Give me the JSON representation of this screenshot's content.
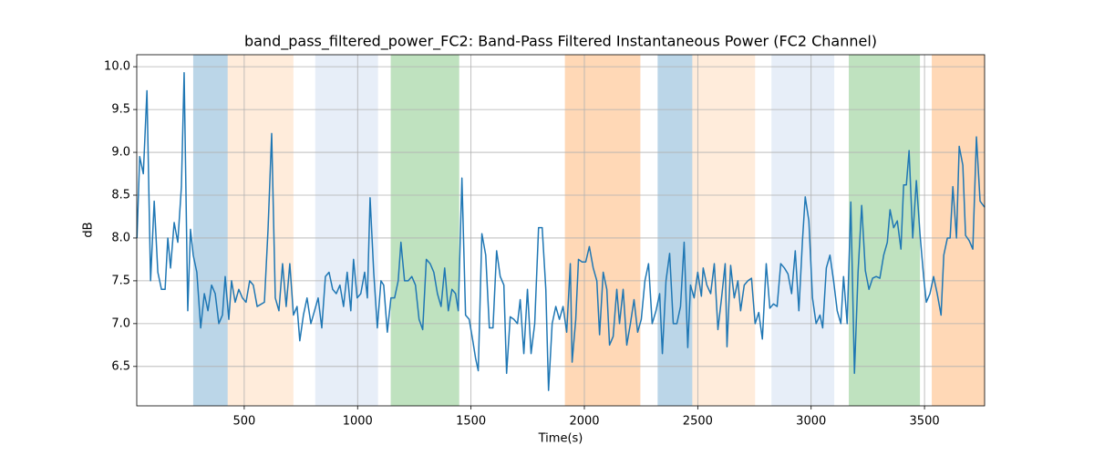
{
  "chart_data": {
    "type": "line",
    "title": "band_pass_filtered_power_FC2: Band-Pass Filtered Instantaneous Power (FC2 Channel)",
    "xlabel": "Time(s)",
    "ylabel": "dB",
    "xlim": [
      26,
      3765
    ],
    "ylim": [
      6.04,
      10.14
    ],
    "xticks": [
      500,
      1000,
      1500,
      2000,
      2500,
      3000,
      3500
    ],
    "yticks": [
      6.5,
      {
        "value": 7,
        "label": "7.0"
      },
      7.5,
      {
        "value": 8,
        "label": "8.0"
      },
      8.5,
      {
        "value": 9,
        "label": "9.0"
      },
      9.5,
      {
        "value": 10,
        "label": "10.0"
      }
    ],
    "grid": true,
    "spans": [
      {
        "start": 275,
        "end": 427,
        "color": "#1f77b4",
        "alpha": 0.3
      },
      {
        "start": 427,
        "end": 717,
        "color": "#ff7f0e",
        "alpha": 0.15
      },
      {
        "start": 813,
        "end": 1090,
        "color": "#aec7e8",
        "alpha": 0.3
      },
      {
        "start": 1146,
        "end": 1448,
        "color": "#2ca02c",
        "alpha": 0.3
      },
      {
        "start": 1914,
        "end": 2247,
        "color": "#ff7f0e",
        "alpha": 0.3
      },
      {
        "start": 2323,
        "end": 2476,
        "color": "#1f77b4",
        "alpha": 0.3
      },
      {
        "start": 2476,
        "end": 2753,
        "color": "#ff7f0e",
        "alpha": 0.15
      },
      {
        "start": 2825,
        "end": 3102,
        "color": "#aec7e8",
        "alpha": 0.3
      },
      {
        "start": 3166,
        "end": 3480,
        "color": "#2ca02c",
        "alpha": 0.3
      },
      {
        "start": 3532,
        "end": 3765,
        "color": "#ff7f0e",
        "alpha": 0.3
      }
    ],
    "x": [
      27,
      39,
      55,
      71,
      87,
      103,
      119,
      135,
      151,
      163,
      175,
      191,
      207,
      223,
      235,
      251,
      263,
      275,
      291,
      308,
      324,
      340,
      356,
      372,
      388,
      404,
      416,
      432,
      444,
      460,
      476,
      492,
      508,
      524,
      540,
      557,
      589,
      605,
      621,
      637,
      653,
      669,
      685,
      701,
      717,
      733,
      745,
      761,
      777,
      794,
      810,
      826,
      842,
      858,
      874,
      890,
      906,
      922,
      938,
      954,
      970,
      982,
      998,
      1014,
      1031,
      1043,
      1055,
      1071,
      1087,
      1103,
      1115,
      1131,
      1147,
      1163,
      1179,
      1191,
      1207,
      1223,
      1239,
      1255,
      1271,
      1287,
      1303,
      1320,
      1336,
      1352,
      1368,
      1384,
      1400,
      1416,
      1432,
      1444,
      1460,
      1476,
      1492,
      1508,
      1520,
      1532,
      1548,
      1565,
      1581,
      1597,
      1613,
      1629,
      1645,
      1657,
      1673,
      1689,
      1705,
      1717,
      1733,
      1749,
      1765,
      1781,
      1798,
      1814,
      1830,
      1842,
      1858,
      1874,
      1890,
      1906,
      1922,
      1938,
      1946,
      1962,
      1974,
      1990,
      2006,
      2022,
      2039,
      2055,
      2067,
      2083,
      2099,
      2111,
      2127,
      2143,
      2155,
      2171,
      2187,
      2203,
      2219,
      2235,
      2251,
      2267,
      2283,
      2299,
      2316,
      2332,
      2344,
      2360,
      2376,
      2392,
      2408,
      2424,
      2440,
      2456,
      2468,
      2484,
      2500,
      2516,
      2524,
      2540,
      2557,
      2573,
      2589,
      2605,
      2621,
      2629,
      2645,
      2661,
      2677,
      2689,
      2705,
      2721,
      2737,
      2753,
      2769,
      2785,
      2802,
      2818,
      2834,
      2850,
      2866,
      2882,
      2898,
      2914,
      2930,
      2946,
      2962,
      2974,
      2990,
      3006,
      3022,
      3039,
      3051,
      3067,
      3083,
      3099,
      3115,
      3131,
      3143,
      3159,
      3175,
      3191,
      3207,
      3223,
      3239,
      3255,
      3271,
      3287,
      3303,
      3320,
      3336,
      3348,
      3364,
      3380,
      3396,
      3408,
      3420,
      3432,
      3448,
      3464,
      3480,
      3496,
      3508,
      3524,
      3540,
      3556,
      3573,
      3585,
      3601,
      3613,
      3625,
      3641,
      3653,
      3669,
      3681,
      3697,
      3713,
      3729,
      3745,
      3765
    ],
    "series": [
      {
        "color": "#1f77b4",
        "values": [
          8.0,
          8.95,
          8.75,
          9.72,
          7.5,
          8.43,
          7.6,
          7.4,
          7.4,
          8.0,
          7.65,
          8.18,
          7.95,
          8.6,
          9.93,
          7.15,
          8.1,
          7.8,
          7.6,
          6.95,
          7.35,
          7.15,
          7.45,
          7.35,
          7.0,
          7.1,
          7.55,
          7.05,
          7.5,
          7.25,
          7.4,
          7.3,
          7.25,
          7.5,
          7.45,
          7.2,
          7.25,
          8.1,
          9.22,
          7.3,
          7.15,
          7.7,
          7.2,
          7.7,
          7.1,
          7.2,
          6.8,
          7.1,
          7.3,
          7.0,
          7.15,
          7.3,
          6.95,
          7.55,
          7.6,
          7.4,
          7.35,
          7.45,
          7.2,
          7.6,
          7.15,
          7.75,
          7.3,
          7.35,
          7.6,
          7.3,
          8.47,
          7.6,
          6.95,
          7.5,
          7.45,
          6.9,
          7.3,
          7.3,
          7.5,
          7.95,
          7.5,
          7.5,
          7.55,
          7.45,
          7.05,
          6.93,
          7.75,
          7.7,
          7.6,
          7.35,
          7.2,
          7.65,
          7.15,
          7.4,
          7.35,
          7.15,
          8.7,
          7.1,
          7.05,
          6.8,
          6.6,
          6.45,
          8.05,
          7.8,
          6.95,
          6.95,
          7.85,
          7.55,
          7.45,
          6.42,
          7.08,
          7.05,
          7.0,
          7.28,
          6.65,
          7.4,
          6.65,
          7.0,
          8.12,
          8.12,
          7.4,
          6.22,
          7.0,
          7.2,
          7.05,
          7.2,
          6.9,
          7.7,
          6.55,
          7.05,
          7.75,
          7.72,
          7.72,
          7.9,
          7.65,
          7.5,
          6.87,
          7.6,
          7.4,
          6.75,
          6.85,
          7.4,
          7.0,
          7.4,
          6.75,
          7.0,
          7.28,
          6.9,
          7.05,
          7.5,
          7.7,
          7.0,
          7.15,
          7.35,
          6.65,
          7.5,
          7.82,
          7.0,
          7.0,
          7.2,
          7.95,
          6.72,
          7.45,
          7.3,
          7.6,
          7.32,
          7.65,
          7.45,
          7.35,
          7.7,
          6.93,
          7.3,
          7.7,
          6.73,
          7.68,
          7.3,
          7.5,
          7.15,
          7.45,
          7.5,
          7.53,
          7.0,
          7.13,
          6.82,
          7.7,
          7.18,
          7.23,
          7.2,
          7.7,
          7.65,
          7.58,
          7.35,
          7.85,
          7.15,
          7.98,
          8.48,
          8.2,
          7.3,
          7.0,
          7.1,
          6.95,
          7.65,
          7.8,
          7.5,
          7.15,
          7.0,
          7.55,
          7.0,
          8.42,
          6.42,
          7.6,
          8.38,
          7.62,
          7.4,
          7.53,
          7.55,
          7.53,
          7.8,
          7.95,
          8.33,
          8.12,
          8.2,
          7.87,
          8.62,
          8.62,
          9.02,
          8.0,
          8.67,
          8.05,
          7.55,
          7.25,
          7.35,
          7.55,
          7.35,
          7.1,
          7.8,
          8.0,
          8.0,
          8.6,
          8.0,
          9.07,
          8.85,
          8.03,
          7.97,
          7.87,
          9.18,
          8.43,
          8.36
        ]
      }
    ]
  }
}
